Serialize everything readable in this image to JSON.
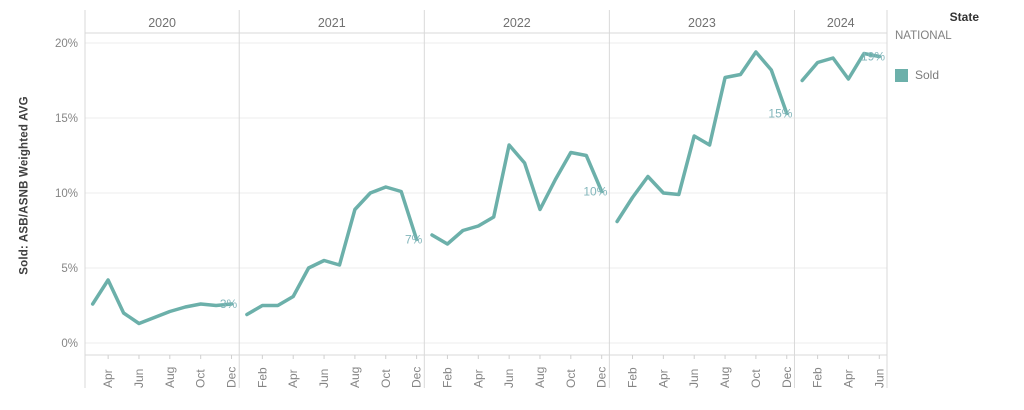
{
  "legend": {
    "title": "State",
    "value": "NATIONAL",
    "items": [
      {
        "label": "Sold",
        "color": "#6cb0aa"
      }
    ]
  },
  "colors": {
    "line": "#6cb0aa",
    "annotation": "#83b6bb",
    "gridline": "#ececec",
    "divider": "#d9d9d9",
    "axis_line": "#d9d9d9",
    "tick_mark": "#cfcfcf",
    "tick_text": "#858585",
    "header_text": "#717171"
  },
  "chart_data": {
    "type": "line",
    "title": "",
    "xlabel": "",
    "ylabel": "Sold: ASB/ASNB Weighted AVG",
    "ylim": [
      0,
      20
    ],
    "grid": true,
    "legend_position": "right",
    "series_name": "Sold",
    "y_ticks": [
      {
        "value": 0,
        "label": "0%"
      },
      {
        "value": 5,
        "label": "5%"
      },
      {
        "value": 10,
        "label": "10%"
      },
      {
        "value": 15,
        "label": "15%"
      },
      {
        "value": 20,
        "label": "20%"
      }
    ],
    "panels": [
      {
        "year": "2020",
        "months": [
          "Mar",
          "Apr",
          "May",
          "Jun",
          "Jul",
          "Aug",
          "Sep",
          "Oct",
          "Nov",
          "Dec"
        ],
        "shown_ticks": [
          "Apr",
          "Jun",
          "Aug",
          "Oct",
          "Dec"
        ],
        "values": [
          2.6,
          4.2,
          2.0,
          1.3,
          1.7,
          2.1,
          2.4,
          2.6,
          2.5,
          2.6
        ],
        "end_label": "3%"
      },
      {
        "year": "2021",
        "months": [
          "Jan",
          "Feb",
          "Mar",
          "Apr",
          "May",
          "Jun",
          "Jul",
          "Aug",
          "Sep",
          "Oct",
          "Nov",
          "Dec"
        ],
        "shown_ticks": [
          "Feb",
          "Apr",
          "Jun",
          "Aug",
          "Oct",
          "Dec"
        ],
        "values": [
          1.9,
          2.5,
          2.5,
          3.1,
          5.0,
          5.5,
          5.2,
          8.9,
          10.0,
          10.4,
          10.1,
          6.9
        ],
        "end_label": "7%"
      },
      {
        "year": "2022",
        "months": [
          "Jan",
          "Feb",
          "Mar",
          "Apr",
          "May",
          "Jun",
          "Jul",
          "Aug",
          "Sep",
          "Oct",
          "Nov",
          "Dec"
        ],
        "shown_ticks": [
          "Feb",
          "Apr",
          "Jun",
          "Aug",
          "Oct",
          "Dec"
        ],
        "values": [
          7.2,
          6.6,
          7.5,
          7.8,
          8.4,
          13.2,
          12.0,
          8.9,
          10.9,
          12.7,
          12.5,
          10.1
        ],
        "end_label": "10%"
      },
      {
        "year": "2023",
        "months": [
          "Jan",
          "Feb",
          "Mar",
          "Apr",
          "May",
          "Jun",
          "Jul",
          "Aug",
          "Sep",
          "Oct",
          "Nov",
          "Dec"
        ],
        "shown_ticks": [
          "Feb",
          "Apr",
          "Jun",
          "Aug",
          "Oct",
          "Dec"
        ],
        "values": [
          8.1,
          9.7,
          11.1,
          10.0,
          9.9,
          13.8,
          13.2,
          17.7,
          17.9,
          19.4,
          18.2,
          15.3
        ],
        "end_label": "15%"
      },
      {
        "year": "2024",
        "months": [
          "Jan",
          "Feb",
          "Mar",
          "Apr",
          "May",
          "Jun"
        ],
        "shown_ticks": [
          "Feb",
          "Apr",
          "Jun"
        ],
        "values": [
          17.5,
          18.7,
          19.0,
          17.6,
          19.3,
          19.1
        ],
        "end_label": "19%"
      }
    ]
  }
}
